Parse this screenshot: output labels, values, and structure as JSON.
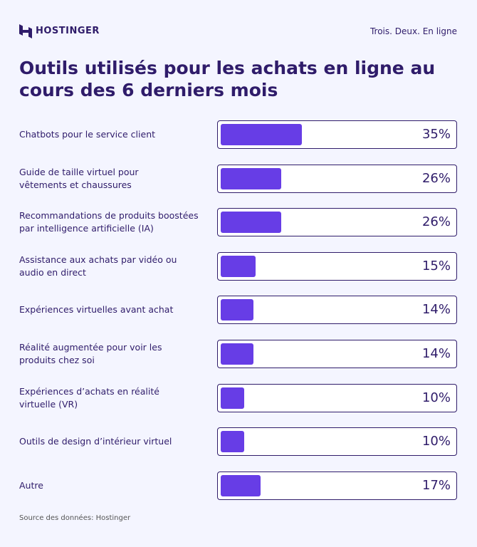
{
  "brand": "HOSTINGER",
  "tagline": "Trois. Deux. En ligne",
  "chart_data": {
    "type": "bar",
    "orientation": "horizontal",
    "title": "Outils utilisés pour les achats en ligne au cours des 6 derniers mois",
    "categories": [
      "Chatbots pour le service client",
      "Guide de taille virtuel pour\nvêtements et chaussures",
      "Recommandations de produits boostées\npar intelligence artificielle (IA)",
      "Assistance aux achats par vidéo ou\naudio en direct",
      "Expériences virtuelles avant achat",
      "Réalité augmentée pour voir les\nproduits chez soi",
      "Expériences d’achats en réalité\nvirtuelle (VR)",
      "Outils de design d’intérieur virtuel",
      "Autre"
    ],
    "values": [
      35,
      26,
      26,
      15,
      14,
      14,
      10,
      10,
      17
    ],
    "value_labels": [
      "35%",
      "26%",
      "26%",
      "15%",
      "14%",
      "14%",
      "10%",
      "10%",
      "17%"
    ],
    "color": "#673de6",
    "xlim": [
      0,
      100
    ],
    "source": "Source des données: Hostinger"
  }
}
